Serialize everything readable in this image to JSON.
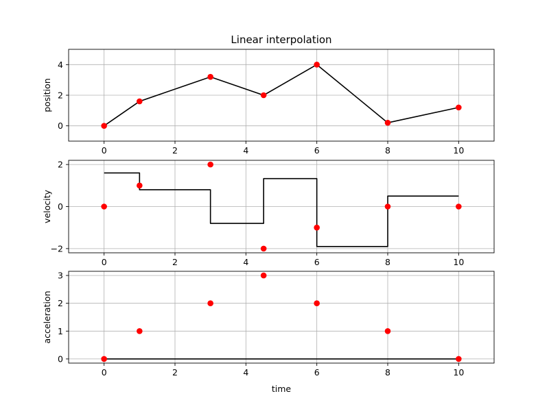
{
  "chart_data": [
    {
      "type": "line",
      "title": "Linear interpolation",
      "xlabel": "",
      "ylabel": "position",
      "xlim": [
        -1,
        11
      ],
      "ylim": [
        -1,
        5
      ],
      "xticks": [
        0,
        2,
        4,
        6,
        8,
        10
      ],
      "yticks": [
        0,
        2,
        4
      ],
      "grid": true,
      "series": [
        {
          "kind": "line",
          "color": "#000000",
          "step": false,
          "x": [
            0,
            1,
            3,
            4.5,
            6,
            8,
            10
          ],
          "y": [
            0,
            1.6,
            3.2,
            2,
            4,
            0.2,
            1.2
          ]
        },
        {
          "kind": "points",
          "color": "#ff0000",
          "x": [
            0,
            1,
            3,
            4.5,
            6,
            8,
            10
          ],
          "y": [
            0,
            1.6,
            3.2,
            2,
            4,
            0.2,
            1.2
          ]
        }
      ]
    },
    {
      "type": "line",
      "title": "",
      "xlabel": "",
      "ylabel": "velocity",
      "xlim": [
        -1,
        11
      ],
      "ylim": [
        -2.2,
        2.2
      ],
      "xticks": [
        0,
        2,
        4,
        6,
        8,
        10
      ],
      "yticks": [
        -2,
        0,
        2
      ],
      "grid": true,
      "series": [
        {
          "kind": "line",
          "color": "#000000",
          "step": true,
          "x": [
            0,
            1,
            3,
            4.5,
            6,
            8,
            10
          ],
          "y": [
            1.6,
            0.8,
            -0.8,
            1.33,
            -1.9,
            0.5,
            0.5
          ]
        },
        {
          "kind": "points",
          "color": "#ff0000",
          "x": [
            0,
            1,
            3,
            4.5,
            6,
            8,
            10
          ],
          "y": [
            0,
            1,
            2,
            -2,
            -1,
            0,
            0
          ]
        }
      ]
    },
    {
      "type": "line",
      "title": "",
      "xlabel": "time",
      "ylabel": "acceleration",
      "xlim": [
        -1,
        11
      ],
      "ylim": [
        -0.15,
        3.15
      ],
      "xticks": [
        0,
        2,
        4,
        6,
        8,
        10
      ],
      "yticks": [
        0,
        1,
        2,
        3
      ],
      "grid": true,
      "series": [
        {
          "kind": "line",
          "color": "#000000",
          "step": false,
          "x": [
            0,
            10
          ],
          "y": [
            0,
            0
          ]
        },
        {
          "kind": "points",
          "color": "#ff0000",
          "x": [
            0,
            1,
            3,
            4.5,
            6,
            8,
            10
          ],
          "y": [
            0,
            1,
            2,
            3,
            2,
            1,
            0
          ]
        }
      ]
    }
  ]
}
